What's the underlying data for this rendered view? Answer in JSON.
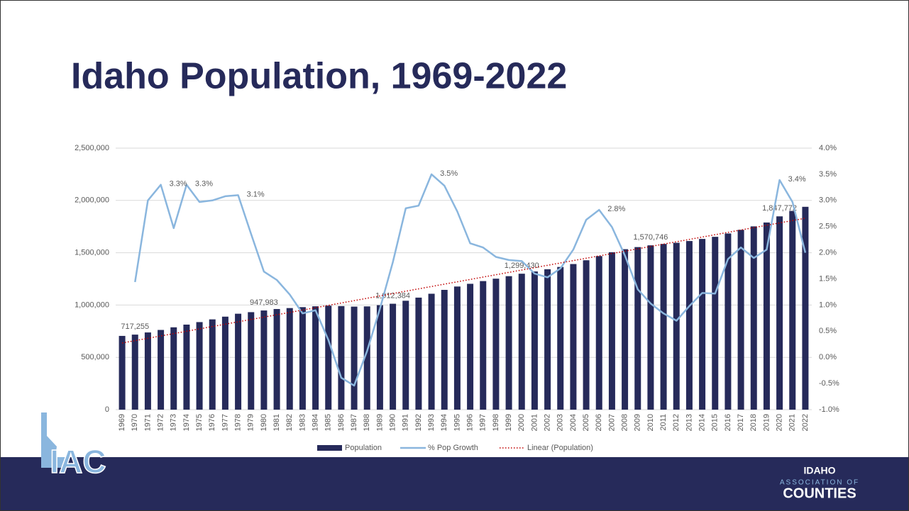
{
  "slide_title": "Idaho Population, 1969-2022",
  "chart_data": {
    "type": "bar-line",
    "categories": [
      "1969",
      "1970",
      "1971",
      "1972",
      "1973",
      "1974",
      "1975",
      "1976",
      "1977",
      "1978",
      "1979",
      "1980",
      "1981",
      "1982",
      "1983",
      "1984",
      "1985",
      "1986",
      "1987",
      "1988",
      "1989",
      "1990",
      "1991",
      "1992",
      "1993",
      "1994",
      "1995",
      "1996",
      "1997",
      "1998",
      "1999",
      "2000",
      "2001",
      "2002",
      "2003",
      "2004",
      "2005",
      "2006",
      "2007",
      "2008",
      "2009",
      "2010",
      "2011",
      "2012",
      "2013",
      "2014",
      "2015",
      "2016",
      "2017",
      "2018",
      "2019",
      "2020",
      "2021",
      "2022"
    ],
    "series": [
      {
        "name": "Population",
        "color": "#262a5a",
        "type": "bar",
        "values": [
          705000,
          717255,
          738000,
          762000,
          787000,
          813000,
          837000,
          863000,
          889000,
          917000,
          932000,
          947983,
          962000,
          971000,
          980000,
          988000,
          994000,
          990000,
          985000,
          987000,
          999000,
          1012384,
          1041000,
          1071000,
          1108000,
          1145000,
          1177000,
          1203000,
          1229000,
          1252000,
          1276000,
          1299430,
          1321000,
          1342000,
          1364000,
          1392000,
          1428000,
          1468000,
          1505000,
          1534000,
          1554000,
          1570746,
          1584000,
          1595000,
          1612000,
          1632000,
          1652000,
          1684000,
          1719000,
          1752000,
          1789000,
          1847772,
          1900000,
          1939000
        ],
        "value_labels": [
          null,
          "717,255",
          null,
          null,
          null,
          null,
          null,
          null,
          null,
          null,
          null,
          "947,983",
          null,
          null,
          null,
          null,
          null,
          null,
          null,
          null,
          null,
          "1,012,384",
          null,
          null,
          null,
          null,
          null,
          null,
          null,
          null,
          null,
          "1,299,430",
          null,
          null,
          null,
          null,
          null,
          null,
          null,
          null,
          null,
          "1,570,746",
          null,
          null,
          null,
          null,
          null,
          null,
          null,
          null,
          null,
          "1,847,772",
          null,
          null
        ]
      },
      {
        "name": "% Pop Growth",
        "color": "#8ab6de",
        "type": "line",
        "axis": "y2",
        "values": [
          null,
          1.44,
          3.0,
          3.3,
          2.47,
          3.3,
          2.97,
          3.0,
          3.08,
          3.1,
          2.36,
          1.64,
          1.48,
          1.2,
          0.84,
          0.9,
          0.33,
          -0.39,
          -0.54,
          0.12,
          0.93,
          1.82,
          2.85,
          2.9,
          3.5,
          3.28,
          2.79,
          2.18,
          2.1,
          1.92,
          1.86,
          1.84,
          1.6,
          1.53,
          1.7,
          2.06,
          2.63,
          2.82,
          2.49,
          1.95,
          1.3,
          1.03,
          0.84,
          0.7,
          0.98,
          1.23,
          1.22,
          1.88,
          2.1,
          1.9,
          2.06,
          3.39,
          2.97,
          2.0
        ],
        "value_labels": [
          null,
          null,
          null,
          "3.3%",
          null,
          "3.3%",
          null,
          null,
          null,
          "3.1%",
          null,
          null,
          null,
          null,
          null,
          null,
          null,
          null,
          null,
          null,
          null,
          null,
          null,
          null,
          "3.5%",
          null,
          null,
          null,
          null,
          null,
          null,
          null,
          null,
          null,
          null,
          null,
          null,
          "2.8%",
          null,
          null,
          null,
          null,
          null,
          null,
          null,
          null,
          null,
          null,
          null,
          null,
          null,
          "3.4%",
          null,
          null
        ]
      }
    ],
    "trend": {
      "name": "Linear (Population)",
      "color": "#c00000",
      "values": [
        637000,
        1830000
      ]
    },
    "ylim": [
      0,
      2500000
    ],
    "yticks": [
      0,
      {
        "value": 500000,
        "label": "500,000"
      },
      {
        "value": 1000000,
        "label": "1,000,000"
      },
      {
        "value": 1500000,
        "label": "1,500,000"
      },
      {
        "value": 2000000,
        "label": "2,000,000"
      },
      {
        "value": 2500000,
        "label": "2,500,000"
      }
    ],
    "y2lim": [
      -1.0,
      4.0
    ],
    "y2ticks": [
      {
        "value": -1.0,
        "label": "-1.0%"
      },
      {
        "value": -0.5,
        "label": "-0.5%"
      },
      {
        "value": 0,
        "label": "0.0%"
      },
      {
        "value": 0.5,
        "label": "0.5%"
      },
      {
        "value": 1.0,
        "label": "1.0%"
      },
      {
        "value": 1.5,
        "label": "1.5%"
      },
      {
        "value": 2.0,
        "label": "2.0%"
      },
      {
        "value": 2.5,
        "label": "2.5%"
      },
      {
        "value": 3.0,
        "label": "3.0%"
      },
      {
        "value": 3.5,
        "label": "3.5%"
      },
      {
        "value": 4.0,
        "label": "4.0%"
      }
    ],
    "grid": true,
    "legend": "bottom"
  },
  "footer": {
    "logo_left": "IAC",
    "logo_right": [
      "IDAHO",
      "ASSOCIATION OF",
      "COUNTIES"
    ]
  }
}
